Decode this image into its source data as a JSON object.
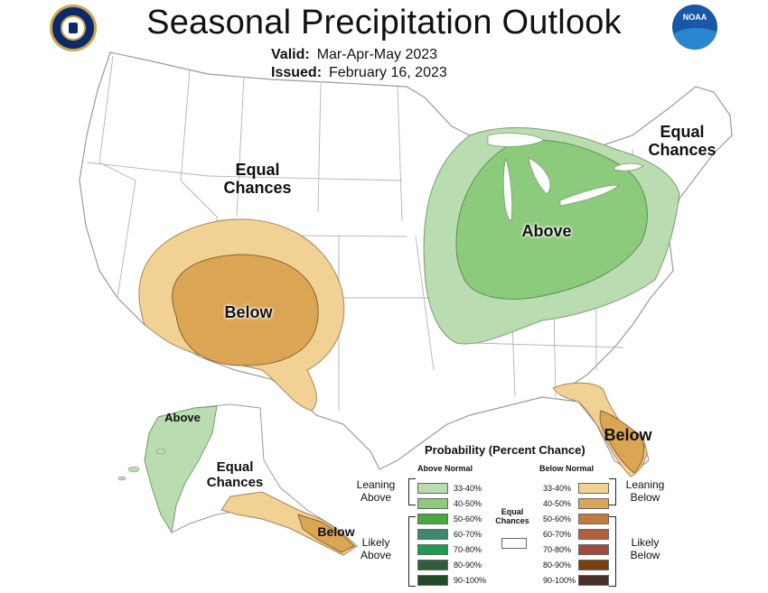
{
  "header": {
    "title": "Seasonal Precipitation Outlook",
    "valid_label": "Valid:",
    "valid_value": "Mar-Apr-May 2023",
    "issued_label": "Issued:",
    "issued_value": "February 16, 2023"
  },
  "logos": {
    "left": "commerce-seal-icon",
    "right": "NOAA"
  },
  "regions": {
    "west_equal": "Equal\nChances",
    "northeast_equal": "Equal\nChances",
    "midwest_above": "Above",
    "southwest_below": "Below",
    "florida_below": "Below",
    "alaska_above": "Above",
    "alaska_equal": "Equal\nChances",
    "alaska_below": "Below"
  },
  "colors": {
    "above_33_40": "#b9ddb0",
    "above_40_50": "#8dcb7c",
    "above_50_60": "#4aa843",
    "above_60_70": "#3c8970",
    "above_70_80": "#1e9b4e",
    "above_80_90": "#2f5e3d",
    "above_90_100": "#224a25",
    "below_33_40": "#f1d294",
    "below_40_50": "#dba654",
    "below_50_60": "#c27b3f",
    "below_60_70": "#b0603e",
    "below_70_80": "#a04a3e",
    "below_80_90": "#7a3f10",
    "below_90_100": "#4a2e2a",
    "land": "#ffffff",
    "border": "#9a9a9a"
  },
  "legend": {
    "title": "Probability (Percent Chance)",
    "above_header": "Above Normal",
    "below_header": "Below Normal",
    "leaning_above": "Leaning\nAbove",
    "likely_above": "Likely\nAbove",
    "leaning_below": "Leaning\nBelow",
    "likely_below": "Likely\nBelow",
    "equal_chances": "Equal\nChances",
    "above_rows": [
      "33-40%",
      "40-50%",
      "50-60%",
      "60-70%",
      "70-80%",
      "80-90%",
      "90-100%"
    ],
    "below_rows": [
      "33-40%",
      "40-50%",
      "50-60%",
      "60-70%",
      "70-80%",
      "80-90%",
      "90-100%"
    ]
  }
}
